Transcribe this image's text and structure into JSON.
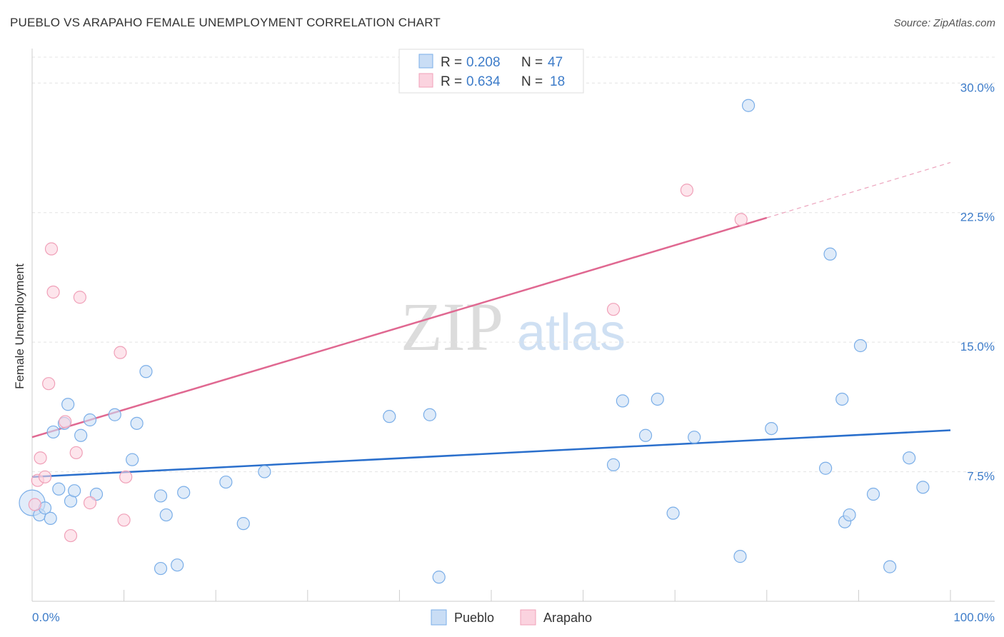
{
  "title": "PUEBLO VS ARAPAHO FEMALE UNEMPLOYMENT CORRELATION CHART",
  "source": "Source: ZipAtlas.com",
  "chart_data": {
    "type": "scatter",
    "title": "PUEBLO VS ARAPAHO FEMALE UNEMPLOYMENT CORRELATION CHART",
    "xlabel": "",
    "ylabel": "Female Unemployment",
    "xlim": [
      0,
      100
    ],
    "ylim": [
      0,
      31.5
    ],
    "x_tick_labels": [
      "0.0%",
      "100.0%"
    ],
    "y_ticks": [
      7.5,
      15.0,
      22.5,
      30.0
    ],
    "y_tick_labels": [
      "7.5%",
      "15.0%",
      "22.5%",
      "30.0%"
    ],
    "grid": true,
    "legend_position": "top-center",
    "watermark": {
      "zip": "ZIP",
      "atlas": "atlas"
    },
    "legend": [
      {
        "r_label": "R = ",
        "r_value": "0.208",
        "n_label": "N = ",
        "n_value": "47"
      },
      {
        "r_label": "R = ",
        "r_value": "0.634",
        "n_label": "N = ",
        "n_value": "18"
      }
    ],
    "series": [
      {
        "name": "Pueblo",
        "color": "#7aaee8",
        "fill": "#c9ddf5",
        "line_color": "#2a6fcc",
        "trend": {
          "x0": 0,
          "y0": 7.2,
          "x1": 100,
          "y1": 9.9
        },
        "points": [
          [
            0.0,
            5.7
          ],
          [
            0.8,
            5.0
          ],
          [
            1.4,
            5.4
          ],
          [
            2.0,
            4.8
          ],
          [
            2.3,
            9.8
          ],
          [
            2.9,
            6.5
          ],
          [
            3.5,
            10.3
          ],
          [
            3.9,
            11.4
          ],
          [
            4.2,
            5.8
          ],
          [
            4.6,
            6.4
          ],
          [
            5.3,
            9.6
          ],
          [
            6.3,
            10.5
          ],
          [
            7.0,
            6.2
          ],
          [
            9.0,
            10.8
          ],
          [
            10.9,
            8.2
          ],
          [
            11.4,
            10.3
          ],
          [
            12.4,
            13.3
          ],
          [
            14.0,
            6.1
          ],
          [
            14.0,
            1.9
          ],
          [
            14.6,
            5.0
          ],
          [
            15.8,
            2.1
          ],
          [
            16.5,
            6.3
          ],
          [
            21.1,
            6.9
          ],
          [
            23.0,
            4.5
          ],
          [
            25.3,
            7.5
          ],
          [
            38.9,
            10.7
          ],
          [
            43.3,
            10.8
          ],
          [
            44.3,
            1.4
          ],
          [
            63.3,
            7.9
          ],
          [
            64.3,
            11.6
          ],
          [
            66.8,
            9.6
          ],
          [
            68.1,
            11.7
          ],
          [
            69.8,
            5.1
          ],
          [
            72.1,
            9.5
          ],
          [
            77.1,
            2.6
          ],
          [
            78.0,
            28.7
          ],
          [
            80.5,
            10.0
          ],
          [
            86.4,
            7.7
          ],
          [
            86.9,
            20.1
          ],
          [
            88.2,
            11.7
          ],
          [
            88.5,
            4.6
          ],
          [
            89.0,
            5.0
          ],
          [
            90.2,
            14.8
          ],
          [
            91.6,
            6.2
          ],
          [
            93.4,
            2.0
          ],
          [
            95.5,
            8.3
          ],
          [
            97.0,
            6.6
          ]
        ]
      },
      {
        "name": "Arapaho",
        "color": "#f0a0b8",
        "fill": "#fbd3df",
        "line_color": "#e06891",
        "trend": {
          "x0": 0,
          "y0": 9.5,
          "x1": 80,
          "y1": 22.2,
          "x_dash_end": 100,
          "y_dash_end": 25.4
        },
        "points": [
          [
            0.3,
            5.6
          ],
          [
            0.6,
            7.0
          ],
          [
            0.9,
            8.3
          ],
          [
            1.4,
            7.2
          ],
          [
            1.8,
            12.6
          ],
          [
            2.1,
            20.4
          ],
          [
            2.3,
            17.9
          ],
          [
            3.6,
            10.4
          ],
          [
            4.2,
            3.8
          ],
          [
            4.8,
            8.6
          ],
          [
            5.2,
            17.6
          ],
          [
            6.3,
            5.7
          ],
          [
            9.6,
            14.4
          ],
          [
            10.0,
            4.7
          ],
          [
            10.2,
            7.2
          ],
          [
            63.3,
            16.9
          ],
          [
            71.3,
            23.8
          ],
          [
            77.2,
            22.1
          ]
        ]
      }
    ]
  }
}
